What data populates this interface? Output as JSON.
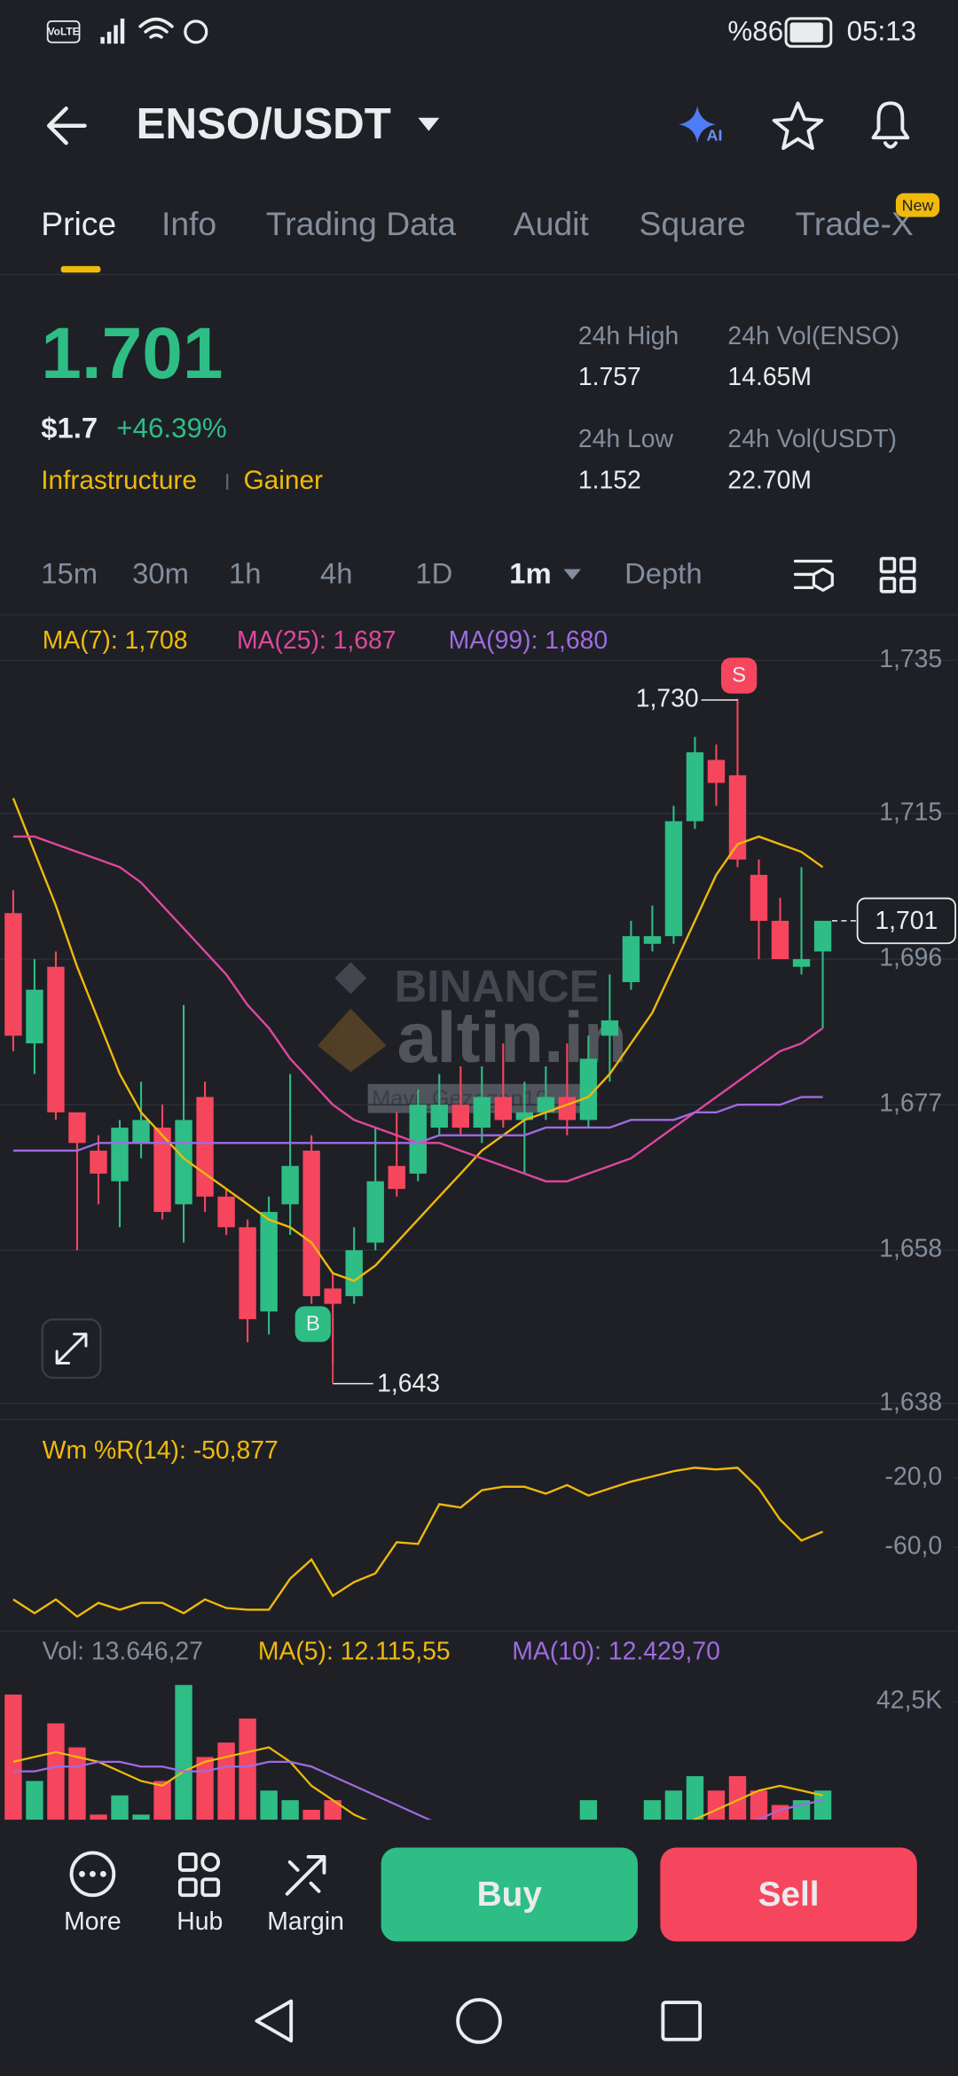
{
  "status_bar": {
    "network": "VoLTE",
    "battery": "%86",
    "time": "05:13"
  },
  "header": {
    "pair": "ENSO/USDT",
    "ai": "AI"
  },
  "tabs": {
    "items": [
      "Price",
      "Info",
      "Trading Data",
      "Audit",
      "Square",
      "Trade-X"
    ],
    "badge": "New"
  },
  "ticker": {
    "price": "1.701",
    "usd_price": "$1.7",
    "change": "+46.39%",
    "tags": [
      "Infrastructure",
      "Gainer"
    ],
    "stats": [
      {
        "label": "24h High",
        "value": "1.757"
      },
      {
        "label": "24h Vol(ENSO)",
        "value": "14.65M"
      },
      {
        "label": "24h Low",
        "value": "1.152"
      },
      {
        "label": "24h Vol(USDT)",
        "value": "22.70M"
      }
    ]
  },
  "intervals": [
    "15m",
    "30m",
    "1h",
    "4h",
    "1D",
    "1m",
    "Depth"
  ],
  "watermark": {
    "brand": "BINANCE",
    "site": "altin.in",
    "user": "Mavi_Gezegen19"
  },
  "chart_data": [
    {
      "type": "candlestick",
      "up_color": "#2ebd85",
      "down_color": "#f6465d",
      "open": [
        1.702,
        1.685,
        1.695,
        1.676,
        1.671,
        1.667,
        1.672,
        1.674,
        1.664,
        1.678,
        1.665,
        1.661,
        1.65,
        1.664,
        1.671,
        1.653,
        1.652,
        1.659,
        1.669,
        1.668,
        1.674,
        1.677,
        1.674,
        1.678,
        1.675,
        1.676,
        1.678,
        1.675,
        1.686,
        1.693,
        1.698,
        1.699,
        1.714,
        1.722,
        1.72,
        1.707,
        1.701,
        1.695,
        1.697
      ],
      "high": [
        1.705,
        1.696,
        1.697,
        1.676,
        1.673,
        1.675,
        1.68,
        1.677,
        1.69,
        1.68,
        1.666,
        1.662,
        1.665,
        1.681,
        1.673,
        1.655,
        1.661,
        1.674,
        1.676,
        1.679,
        1.681,
        1.682,
        1.682,
        1.685,
        1.68,
        1.682,
        1.685,
        1.686,
        1.694,
        1.701,
        1.703,
        1.716,
        1.725,
        1.724,
        1.73,
        1.709,
        1.704,
        1.708,
        1.701
      ],
      "low": [
        1.684,
        1.681,
        1.675,
        1.658,
        1.664,
        1.661,
        1.67,
        1.662,
        1.659,
        1.663,
        1.66,
        1.646,
        1.647,
        1.66,
        1.651,
        1.643,
        1.651,
        1.658,
        1.665,
        1.667,
        1.673,
        1.673,
        1.672,
        1.674,
        1.668,
        1.675,
        1.673,
        1.674,
        1.68,
        1.692,
        1.697,
        1.698,
        1.713,
        1.716,
        1.708,
        1.696,
        1.696,
        1.694,
        1.687
      ],
      "close": [
        1.686,
        1.692,
        1.676,
        1.672,
        1.668,
        1.674,
        1.675,
        1.663,
        1.675,
        1.665,
        1.661,
        1.649,
        1.663,
        1.669,
        1.652,
        1.651,
        1.658,
        1.667,
        1.666,
        1.677,
        1.677,
        1.674,
        1.678,
        1.675,
        1.676,
        1.678,
        1.675,
        1.683,
        1.688,
        1.699,
        1.699,
        1.714,
        1.723,
        1.719,
        1.709,
        1.701,
        1.696,
        1.696,
        1.701
      ],
      "series": [
        {
          "name": "MA(7): 1,708",
          "color": "#f0b90b",
          "values": [
            1.717,
            1.71,
            1.703,
            1.695,
            1.688,
            1.681,
            1.676,
            1.673,
            1.67,
            1.668,
            1.666,
            1.664,
            1.662,
            1.661,
            1.659,
            1.655,
            1.654,
            1.656,
            1.659,
            1.662,
            1.665,
            1.668,
            1.671,
            1.673,
            1.675,
            1.676,
            1.677,
            1.678,
            1.681,
            1.685,
            1.689,
            1.695,
            1.701,
            1.707,
            1.711,
            1.712,
            1.711,
            1.71,
            1.708
          ]
        },
        {
          "name": "MA(25): 1,687",
          "color": "#e0479e",
          "values": [
            1.712,
            1.712,
            1.711,
            1.71,
            1.709,
            1.708,
            1.706,
            1.703,
            1.7,
            1.697,
            1.694,
            1.69,
            1.687,
            1.683,
            1.68,
            1.677,
            1.675,
            1.674,
            1.673,
            1.672,
            1.672,
            1.671,
            1.67,
            1.669,
            1.668,
            1.667,
            1.667,
            1.668,
            1.669,
            1.67,
            1.672,
            1.674,
            1.676,
            1.678,
            1.68,
            1.682,
            1.684,
            1.685,
            1.687
          ]
        },
        {
          "name": "MA(99): 1,680",
          "color": "#a06be0",
          "values": [
            1.671,
            1.671,
            1.671,
            1.671,
            1.672,
            1.672,
            1.672,
            1.672,
            1.672,
            1.672,
            1.672,
            1.672,
            1.672,
            1.672,
            1.672,
            1.672,
            1.672,
            1.672,
            1.672,
            1.672,
            1.673,
            1.673,
            1.673,
            1.673,
            1.673,
            1.674,
            1.674,
            1.674,
            1.674,
            1.675,
            1.675,
            1.675,
            1.676,
            1.676,
            1.677,
            1.677,
            1.677,
            1.678,
            1.678
          ]
        }
      ],
      "ylim": [
        1.636,
        1.74
      ],
      "yticks": [
        {
          "value": 1.735,
          "label": "1,735"
        },
        {
          "value": 1.715,
          "label": "1,715"
        },
        {
          "value": 1.696,
          "label": "1,696"
        },
        {
          "value": 1.677,
          "label": "1,677"
        },
        {
          "value": 1.658,
          "label": "1,658"
        },
        {
          "value": 1.638,
          "label": "1,638"
        }
      ],
      "grid": true,
      "last_price_label": "1,701",
      "high_label": "1,730",
      "low_label": "1,643",
      "sell_marker": "S",
      "buy_marker": "B"
    },
    {
      "type": "line",
      "title": "Wm %R(14): -50,877",
      "color": "#f0b90b",
      "values": [
        -90,
        -98,
        -90,
        -100,
        -92,
        -96,
        -92,
        -92,
        -98,
        -90,
        -95,
        -96,
        -96,
        -78,
        -67,
        -88,
        -80,
        -75,
        -57,
        -58,
        -35,
        -37,
        -27,
        -25,
        -25,
        -29,
        -24,
        -30,
        -26,
        -22,
        -19,
        -16,
        -14,
        -15,
        -14,
        -26,
        -44,
        -56,
        -50.877
      ],
      "ylim": [
        -108,
        12
      ],
      "yticks": [
        {
          "value": -20,
          "label": "-20,0"
        },
        {
          "value": -60,
          "label": "-60,0"
        }
      ]
    },
    {
      "type": "bar",
      "title": "Vol: 13.646,27",
      "values": [
        44000,
        26000,
        38000,
        33000,
        19000,
        23000,
        19000,
        26000,
        46000,
        31000,
        34000,
        39000,
        24000,
        22000,
        20000,
        22000,
        16000,
        10000,
        8000,
        6000,
        5000,
        4000,
        4000,
        4000,
        5000,
        4000,
        5000,
        22000,
        6000,
        4000,
        22000,
        24000,
        27000,
        24000,
        27000,
        24000,
        21000,
        22000,
        24000
      ],
      "series": [
        {
          "name": "MA(5): 12.115,55",
          "color": "#f0b90b",
          "values": [
            30000,
            31000,
            32000,
            31000,
            30000,
            28000,
            26000,
            25000,
            28000,
            30000,
            31000,
            32000,
            33000,
            30000,
            25000,
            22000,
            19000,
            17000,
            14000,
            12000,
            10000,
            8000,
            6000,
            5000,
            5000,
            5000,
            5000,
            8000,
            9000,
            9000,
            12000,
            15000,
            18000,
            20000,
            22000,
            24000,
            25000,
            24000,
            23000
          ]
        },
        {
          "name": "MA(10): 12.429,70",
          "color": "#a06be0",
          "values": [
            28000,
            28000,
            29000,
            29000,
            30000,
            30000,
            29000,
            29000,
            28000,
            28000,
            29000,
            29000,
            30000,
            30000,
            29000,
            27000,
            25000,
            23000,
            21000,
            19000,
            17000,
            15000,
            13000,
            11000,
            9000,
            8000,
            7000,
            7000,
            7000,
            8000,
            9000,
            10000,
            12000,
            14000,
            16000,
            18000,
            20000,
            21000,
            22000
          ]
        }
      ],
      "ylim": [
        0,
        51000
      ],
      "yticks": [
        {
          "value": 42500,
          "label": "42,5K"
        }
      ]
    }
  ],
  "bottom_bar": {
    "actions": [
      "More",
      "Hub",
      "Margin"
    ],
    "buy": "Buy",
    "sell": "Sell"
  }
}
